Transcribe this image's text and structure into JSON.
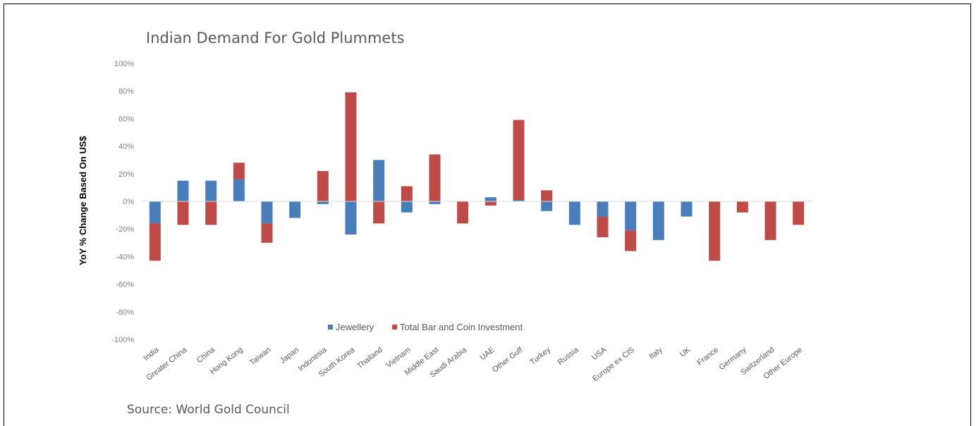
{
  "chart_data": {
    "type": "bar",
    "stacked": true,
    "title": "Indian Demand For Gold Plummets",
    "ylabel": "YoY % Change Based On US$",
    "source": "Source: World Gold Council",
    "ylim": [
      -100,
      100
    ],
    "yticks": [
      "100%",
      "80%",
      "60%",
      "40%",
      "20%",
      "0%",
      "-20%",
      "-40%",
      "-60%",
      "-80%",
      "-100%"
    ],
    "legend_position": "bottom",
    "grid": false,
    "categories": [
      "India",
      "Greater China",
      "China",
      "Hong Kong",
      "Taiwan",
      "Japan",
      "Indonesia",
      "South Korea",
      "Thailand",
      "Vietnam",
      "Middle East",
      "Saudi Arabia",
      "UAE",
      "Other Gulf",
      "Turkey",
      "Russia",
      "USA",
      "Europe ex CIS",
      "Italy",
      "UK",
      "France",
      "Germany",
      "Switzerland",
      "Other Europe"
    ],
    "series": [
      {
        "name": "Jewellery",
        "color": "#4a7ebb",
        "values": [
          -16,
          15,
          15,
          16,
          -16,
          -12,
          -2,
          -24,
          30,
          -8,
          -2,
          0,
          3,
          1,
          -7,
          -17,
          -11,
          -21,
          -28,
          -11,
          0,
          0,
          0,
          0
        ]
      },
      {
        "name": "Total Bar and Coin Investment",
        "color": "#be4b48",
        "values": [
          -27,
          -17,
          -17,
          12,
          -14,
          0,
          22,
          79,
          -16,
          11,
          34,
          -16,
          -3,
          58,
          8,
          0,
          -15,
          -15,
          0,
          0,
          -43,
          -8,
          -28,
          -17
        ]
      }
    ]
  }
}
